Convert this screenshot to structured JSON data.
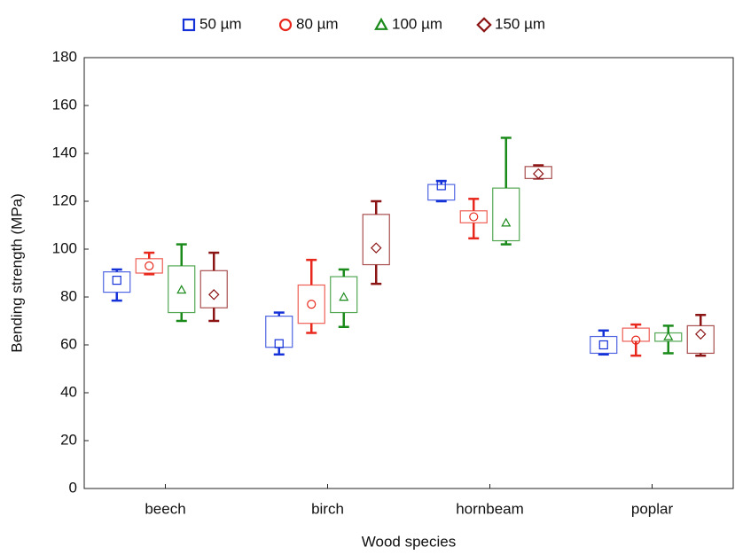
{
  "chart_data": {
    "type": "box",
    "x_label": "Wood species",
    "y_label": "Bending strength  (MPa)",
    "categories": [
      "beech",
      "birch",
      "hornbeam",
      "poplar"
    ],
    "ylim": [
      0,
      180
    ],
    "yticks": [
      0,
      20,
      40,
      60,
      80,
      100,
      120,
      140,
      160,
      180
    ],
    "legend": "top",
    "series": [
      {
        "name": "50 µm",
        "color": "#1432d8",
        "marker": "square",
        "min": [
          78.5,
          56,
          120,
          56
        ],
        "q1": [
          82,
          59,
          120.5,
          56.5
        ],
        "median": [
          87,
          60.5,
          126.5,
          60
        ],
        "q3": [
          90.5,
          72,
          127,
          63.5
        ],
        "max": [
          91.5,
          73.5,
          128.5,
          66
        ]
      },
      {
        "name": "80 µm",
        "color": "#e8281c",
        "marker": "circle",
        "min": [
          89.5,
          65,
          104.5,
          55.5
        ],
        "q1": [
          90,
          69,
          111,
          61.5
        ],
        "median": [
          93,
          77,
          113.5,
          62
        ],
        "q3": [
          96,
          85,
          116,
          67
        ],
        "max": [
          98.5,
          95.5,
          121,
          68.5
        ]
      },
      {
        "name": "100 µm",
        "color": "#1a8a1a",
        "marker": "triangle",
        "min": [
          70,
          67.5,
          102,
          56.5
        ],
        "q1": [
          73.5,
          73.5,
          103.5,
          61.5
        ],
        "median": [
          83,
          80,
          111,
          63.5
        ],
        "q3": [
          93,
          88.5,
          125.5,
          65
        ],
        "max": [
          102,
          91.5,
          146.5,
          68
        ]
      },
      {
        "name": "150 µm",
        "color": "#8b1414",
        "marker": "diamond",
        "min": [
          70,
          85.5,
          129.5,
          55.5
        ],
        "q1": [
          75.5,
          93.5,
          129.5,
          56.5
        ],
        "median": [
          81,
          100.5,
          131.5,
          64.5
        ],
        "q3": [
          91,
          114.5,
          134.5,
          68
        ],
        "max": [
          98.5,
          120,
          135,
          72.5
        ]
      }
    ]
  }
}
